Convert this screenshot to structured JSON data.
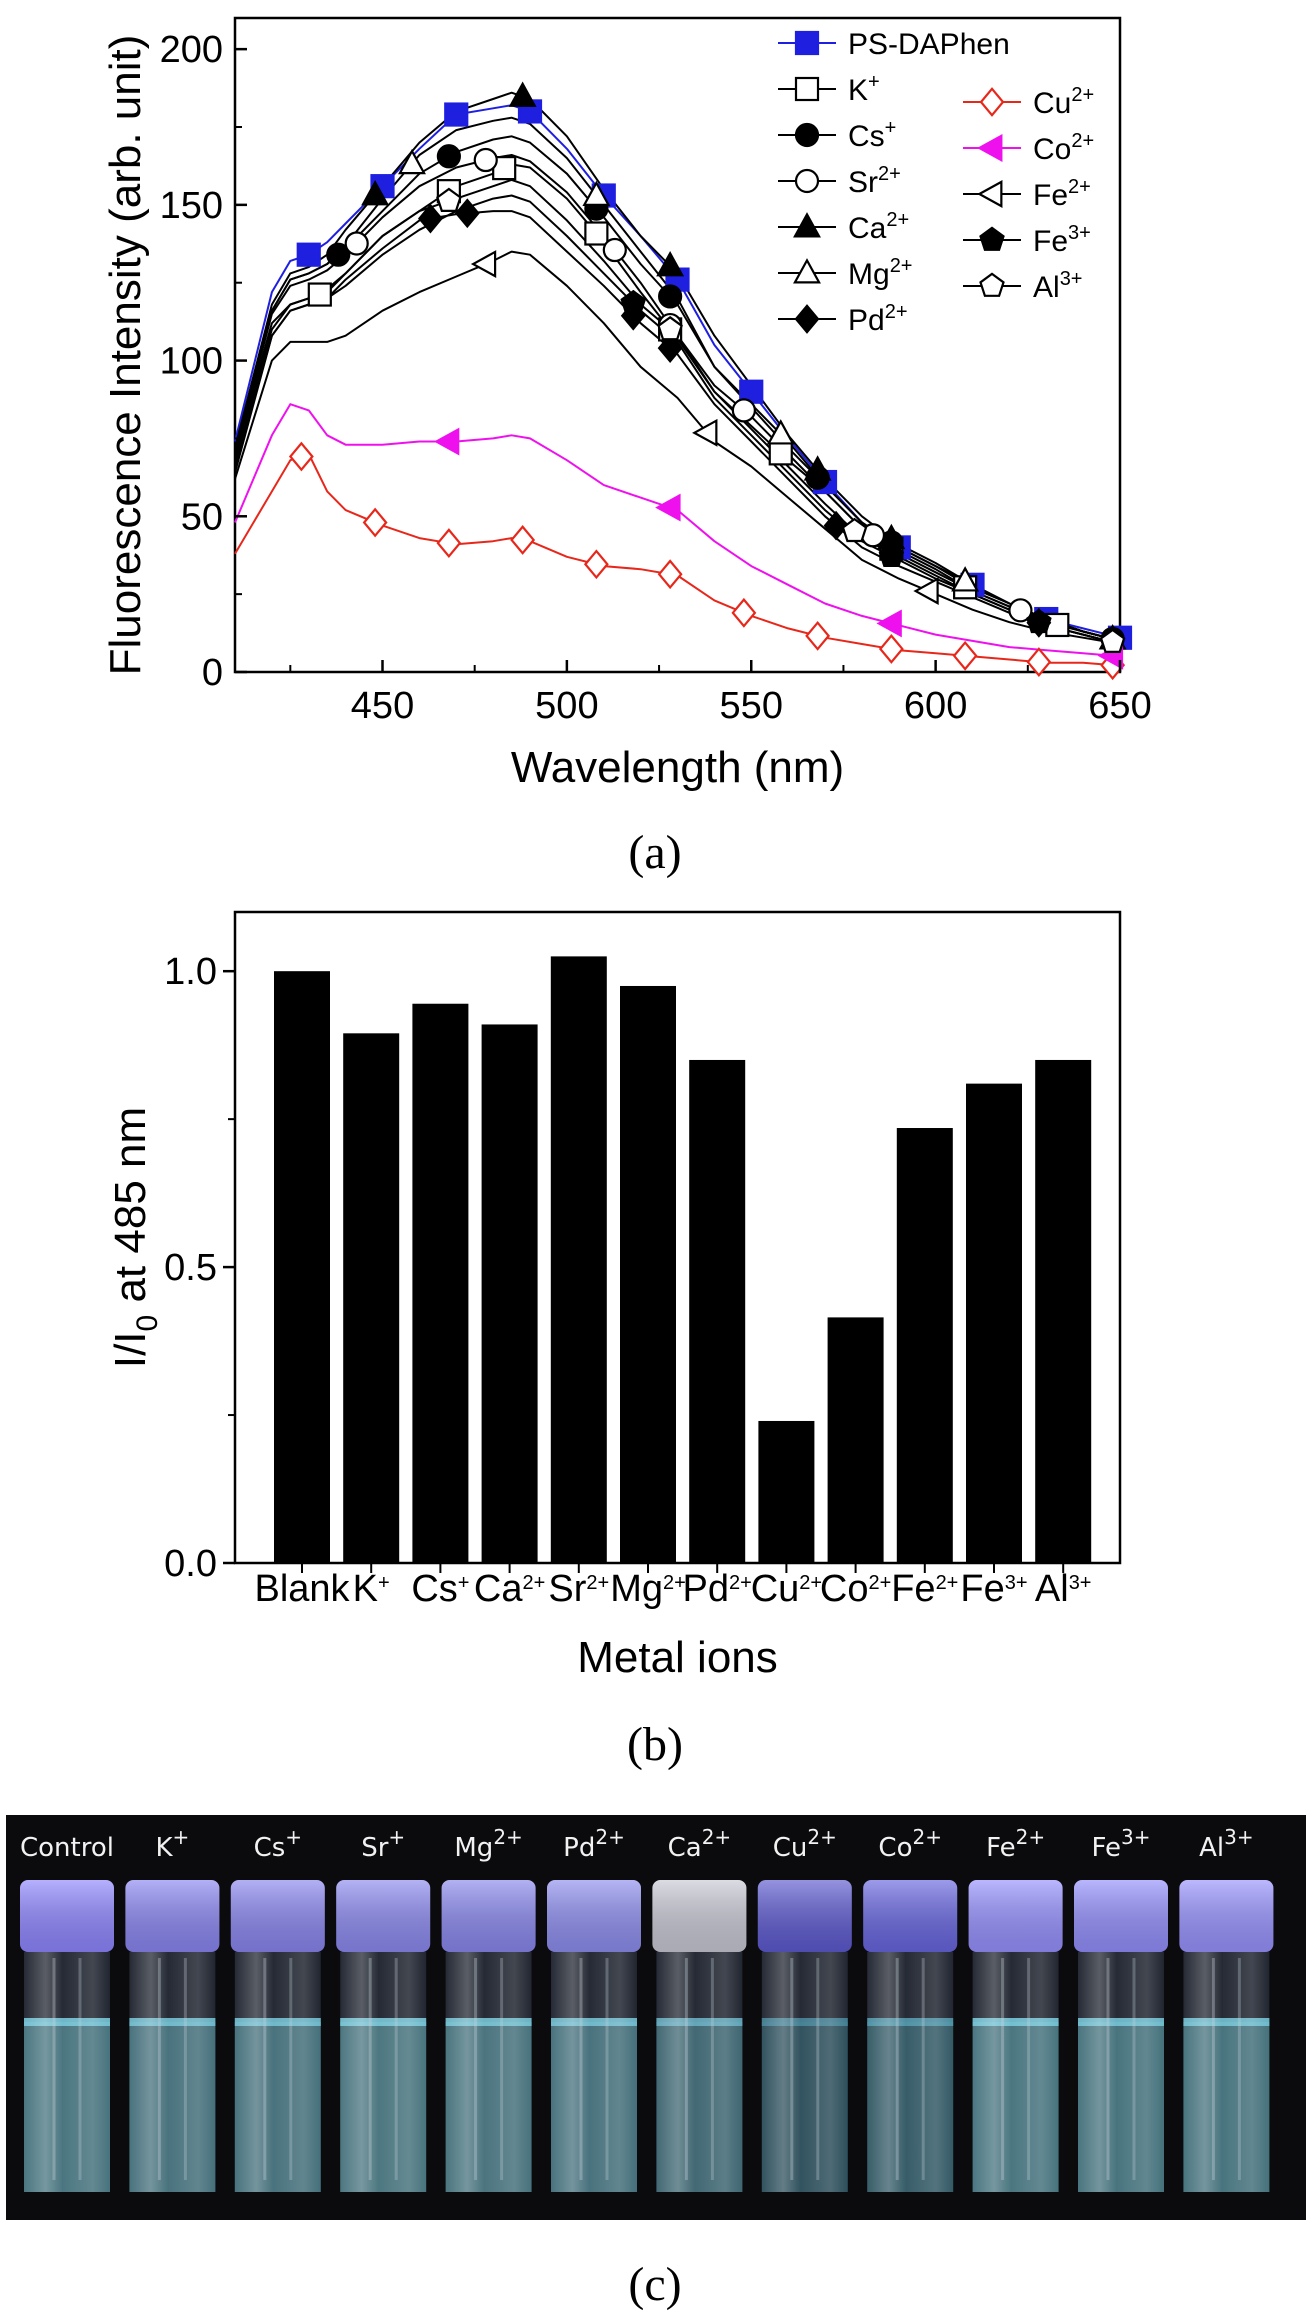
{
  "captions": {
    "a": "(a)",
    "b": "(b)",
    "c": "(c)"
  },
  "chart_data": [
    {
      "type": "line",
      "xlabel": "Wavelength (nm)",
      "ylabel": "Fluorescence Intensity (arb. unit)",
      "xlim": [
        410,
        650
      ],
      "ylim": [
        0,
        210
      ],
      "xticks": [
        450,
        500,
        550,
        600,
        650
      ],
      "yticks": [
        0,
        50,
        100,
        150,
        200
      ],
      "legend_position": "top-right",
      "x": [
        410,
        420,
        425,
        430,
        435,
        440,
        450,
        460,
        470,
        480,
        485,
        490,
        500,
        510,
        520,
        530,
        540,
        550,
        560,
        570,
        580,
        590,
        600,
        610,
        620,
        630,
        640,
        650
      ],
      "series": [
        {
          "name": "PS-DAPhen",
          "sup": "",
          "color": "#1f1fe0",
          "marker": "filled-square",
          "markers_x": [
            430,
            450,
            470,
            490,
            510,
            530,
            550,
            570,
            590,
            610,
            630,
            650
          ],
          "values": [
            74,
            122,
            132,
            134,
            138,
            144,
            156,
            168,
            179,
            181,
            182,
            180,
            168,
            153,
            140,
            126,
            105,
            90,
            75,
            61,
            48,
            40,
            34,
            28,
            22,
            17,
            14,
            11
          ]
        },
        {
          "name": "K",
          "sup": "+",
          "color": "#000000",
          "marker": "open-square",
          "markers_x": [
            433,
            468,
            483,
            508,
            528,
            558,
            588,
            608,
            633
          ],
          "values": [
            70,
            112,
            118,
            120,
            122,
            128,
            140,
            148,
            156,
            160,
            163,
            162,
            152,
            138,
            122,
            107,
            90,
            79,
            68,
            58,
            46,
            38,
            32,
            26,
            21,
            16,
            13,
            10
          ]
        },
        {
          "name": "Cs",
          "sup": "+",
          "color": "#000000",
          "marker": "filled-circle",
          "markers_x": [
            438,
            468,
            508,
            528,
            568,
            588,
            648
          ],
          "values": [
            71,
            116,
            126,
            128,
            131,
            136,
            148,
            160,
            167,
            171,
            172,
            170,
            160,
            146,
            131,
            118,
            98,
            85,
            72,
            60,
            48,
            40,
            34,
            27,
            22,
            17,
            13,
            10
          ]
        },
        {
          "name": "Sr",
          "sup": "2+",
          "color": "#000000",
          "marker": "open-circle",
          "markers_x": [
            443,
            478,
            513,
            528,
            548,
            583,
            623
          ],
          "values": [
            70,
            115,
            124,
            126,
            129,
            134,
            146,
            156,
            162,
            165,
            166,
            164,
            154,
            140,
            125,
            108,
            92,
            82,
            70,
            58,
            46,
            39,
            33,
            26,
            21,
            17,
            13,
            10
          ]
        },
        {
          "name": "Ca",
          "sup": "2+",
          "color": "#000000",
          "marker": "filled-triangle",
          "markers_x": [
            448,
            488,
            528,
            568,
            588,
            648
          ],
          "values": [
            72,
            118,
            128,
            130,
            134,
            142,
            156,
            170,
            180,
            184,
            186,
            184,
            172,
            155,
            140,
            128,
            108,
            92,
            76,
            62,
            50,
            41,
            35,
            28,
            22,
            17,
            13,
            10
          ]
        },
        {
          "name": "Mg",
          "sup": "2+",
          "color": "#000000",
          "marker": "open-triangle",
          "markers_x": [
            458,
            508,
            558,
            608
          ],
          "values": [
            71,
            116,
            126,
            128,
            131,
            137,
            152,
            166,
            174,
            177,
            178,
            176,
            165,
            150,
            135,
            120,
            98,
            86,
            74,
            60,
            48,
            40,
            34,
            28,
            22,
            17,
            13,
            10
          ]
        },
        {
          "name": "Pd",
          "sup": "2+",
          "color": "#000000",
          "marker": "filled-diamond",
          "markers_x": [
            463,
            473,
            518,
            528,
            573,
            628
          ],
          "values": [
            64,
            108,
            116,
            118,
            120,
            126,
            136,
            145,
            147,
            148,
            148,
            146,
            135,
            124,
            112,
            102,
            86,
            74,
            62,
            50,
            40,
            34,
            29,
            24,
            19,
            15,
            12,
            9
          ]
        },
        {
          "name": "Cu",
          "sup": "2+",
          "color": "#e8271b",
          "marker": "open-diamond",
          "markers_x": [
            428,
            448,
            468,
            488,
            508,
            528,
            548,
            568,
            588,
            608,
            628,
            648
          ],
          "values": [
            38,
            58,
            68,
            70,
            58,
            52,
            47,
            43,
            41,
            42,
            43,
            42,
            37,
            34,
            33,
            31,
            23,
            18,
            14,
            11,
            9,
            7,
            6,
            5,
            4,
            3,
            3,
            2
          ]
        },
        {
          "name": "Co",
          "sup": "2+",
          "color": "#ee11ee",
          "marker": "filled-left-triangle",
          "markers_x": [
            468,
            528,
            588,
            648
          ],
          "values": [
            48,
            76,
            86,
            84,
            76,
            73,
            73,
            74,
            74,
            75,
            76,
            75,
            68,
            60,
            56,
            52,
            42,
            34,
            28,
            22,
            18,
            15,
            12,
            10,
            8,
            7,
            6,
            5
          ]
        },
        {
          "name": "Fe",
          "sup": "2+",
          "color": "#000000",
          "marker": "open-left-triangle",
          "markers_x": [
            478,
            538,
            598
          ],
          "values": [
            62,
            100,
            106,
            106,
            106,
            108,
            116,
            122,
            127,
            132,
            135,
            134,
            124,
            112,
            98,
            88,
            74,
            66,
            56,
            46,
            36,
            30,
            25,
            20,
            16,
            13,
            11,
            9
          ]
        },
        {
          "name": "Fe",
          "sup": "3+",
          "color": "#000000",
          "marker": "filled-pentagon",
          "markers_x": [
            518,
            588,
            628
          ],
          "values": [
            66,
            108,
            116,
            118,
            120,
            124,
            134,
            142,
            148,
            152,
            153,
            151,
            140,
            128,
            116,
            106,
            88,
            76,
            64,
            52,
            42,
            36,
            30,
            25,
            20,
            15,
            12,
            9
          ]
        },
        {
          "name": "Al",
          "sup": "3+",
          "color": "#000000",
          "marker": "open-pentagon",
          "markers_x": [
            468,
            528,
            578,
            648
          ],
          "values": [
            68,
            110,
            118,
            120,
            123,
            128,
            140,
            148,
            152,
            156,
            158,
            156,
            145,
            132,
            118,
            108,
            90,
            78,
            66,
            54,
            43,
            37,
            31,
            25,
            20,
            15,
            12,
            9
          ]
        }
      ]
    },
    {
      "type": "bar",
      "xlabel": "Metal ions",
      "ylabel_main": "I/I",
      "ylabel_sub": "0",
      "ylabel_rest": " at 485 nm",
      "ylim": [
        0,
        1.1
      ],
      "yticks": [
        "0.0",
        "0.5",
        "1.0"
      ],
      "ytick_values": [
        0,
        0.5,
        1.0
      ],
      "categories": [
        {
          "name": "Blank",
          "sup": ""
        },
        {
          "name": "K",
          "sup": "+"
        },
        {
          "name": "Cs",
          "sup": "+"
        },
        {
          "name": "Ca",
          "sup": "2+"
        },
        {
          "name": "Sr",
          "sup": "2+"
        },
        {
          "name": "Mg",
          "sup": "2+"
        },
        {
          "name": "Pd",
          "sup": "2+"
        },
        {
          "name": "Cu",
          "sup": "2+"
        },
        {
          "name": "Co",
          "sup": "2+"
        },
        {
          "name": "Fe",
          "sup": "2+"
        },
        {
          "name": "Fe",
          "sup": "3+"
        },
        {
          "name": "Al",
          "sup": "3+"
        }
      ],
      "values": [
        1.0,
        0.895,
        0.945,
        0.91,
        1.025,
        0.975,
        0.85,
        0.24,
        0.415,
        0.735,
        0.81,
        0.85
      ],
      "bar_color": "#000000"
    }
  ],
  "photo": {
    "vials": [
      {
        "name": "Control",
        "sup": "",
        "cap": "#8f86ff",
        "liquid": "#6fc3d6"
      },
      {
        "name": "K",
        "sup": "+",
        "cap": "#8a86f2",
        "liquid": "#6bbccf"
      },
      {
        "name": "Cs",
        "sup": "+",
        "cap": "#8a86f0",
        "liquid": "#6bbccf"
      },
      {
        "name": "Sr",
        "sup": "+",
        "cap": "#8c8af0",
        "liquid": "#72c4d6"
      },
      {
        "name": "Mg",
        "sup": "2+",
        "cap": "#8a88ee",
        "liquid": "#6fc0d2"
      },
      {
        "name": "Pd",
        "sup": "2+",
        "cap": "#8e8ef0",
        "liquid": "#6bbccf"
      },
      {
        "name": "Ca",
        "sup": "2+",
        "cap": "#c9c9d6",
        "liquid": "#5fa9bd"
      },
      {
        "name": "Cu",
        "sup": "2+",
        "cap": "#5d5ad0",
        "liquid": "#3f7f95"
      },
      {
        "name": "Co",
        "sup": "2+",
        "cap": "#6866e0",
        "liquid": "#4a94a8"
      },
      {
        "name": "Fe",
        "sup": "2+",
        "cap": "#9691ff",
        "liquid": "#6fc3d6"
      },
      {
        "name": "Fe",
        "sup": "3+",
        "cap": "#938ffd",
        "liquid": "#6cbfd2"
      },
      {
        "name": "Al",
        "sup": "3+",
        "cap": "#9893ff",
        "liquid": "#6cbfd2"
      }
    ]
  }
}
